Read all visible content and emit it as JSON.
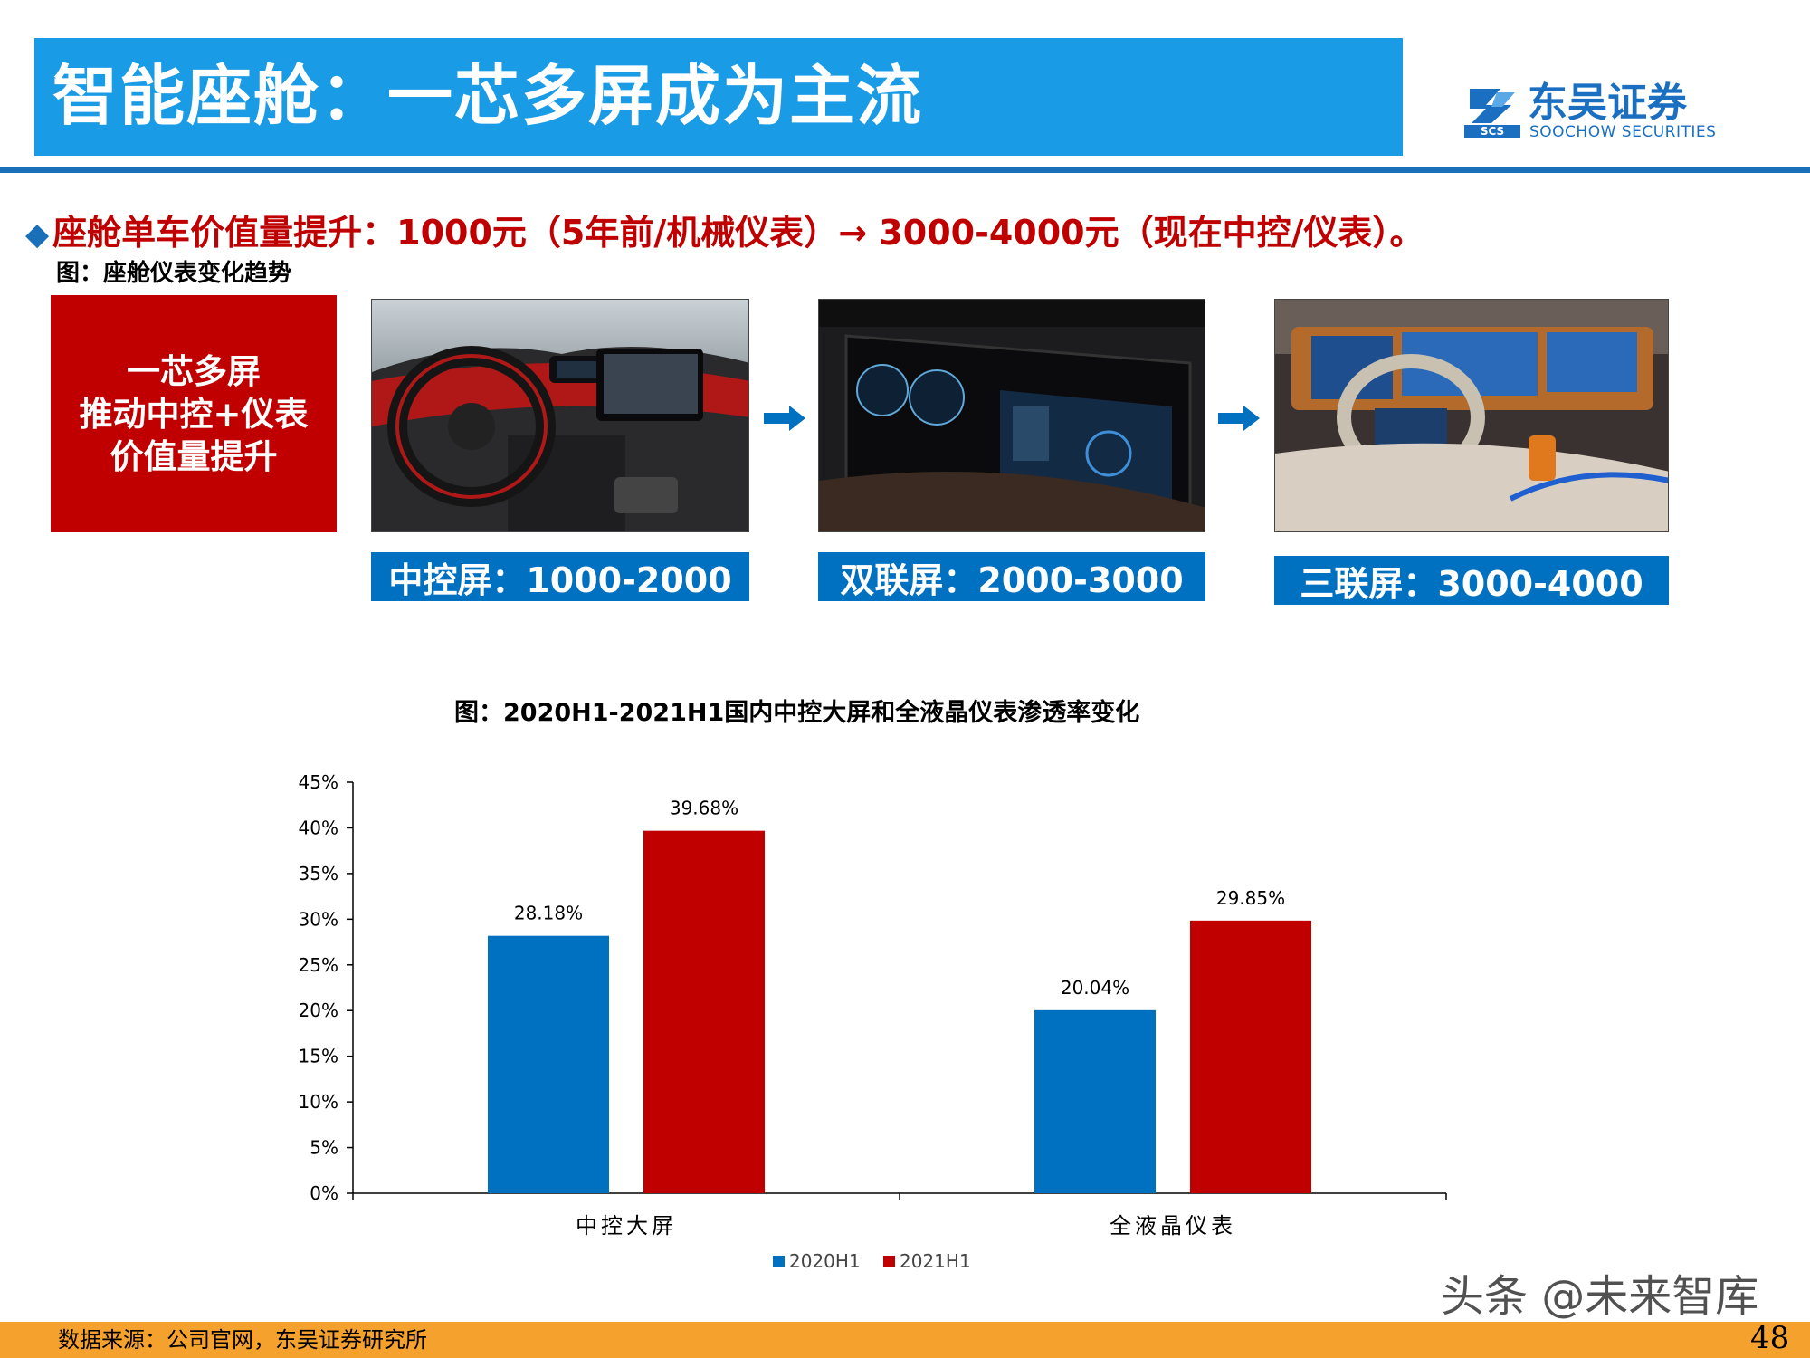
{
  "header": {
    "title": "智能座舱：一芯多屏成为主流",
    "logo_cn": "东吴证券",
    "logo_en": "SOOCHOW SECURITIES",
    "logo_mark_text": "SCS"
  },
  "bullet": {
    "marker": "◆",
    "text": "座舱单车价值量提升：1000元（5年前/机械仪表）→ 3000-4000元（现在中控/仪表）。"
  },
  "figure_top": {
    "caption": "图：座舱仪表变化趋势",
    "redbox_lines": [
      "一芯多屏",
      "推动中控+仪表",
      "价值量提升"
    ],
    "labels": [
      "中控屏：1000-2000",
      "双联屏：2000-3000",
      "三联屏：3000-4000"
    ]
  },
  "chart_title": "图：2020H1-2021H1国内中控大屏和全液晶仪表渗透率变化",
  "chart_data": {
    "type": "bar",
    "categories": [
      "中控大屏",
      "全液晶仪表"
    ],
    "series": [
      {
        "name": "2020H1",
        "values": [
          28.18,
          20.04
        ],
        "labels": [
          "28.18%",
          "20.04%"
        ],
        "color": "#0070c0"
      },
      {
        "name": "2021H1",
        "values": [
          39.68,
          29.85
        ],
        "labels": [
          "39.68%",
          "29.85%"
        ],
        "color": "#c00000"
      }
    ],
    "ylim": [
      0,
      45
    ],
    "yticks": [
      0,
      5,
      10,
      15,
      20,
      25,
      30,
      35,
      40,
      45
    ],
    "ytick_labels": [
      "0%",
      "5%",
      "10%",
      "15%",
      "20%",
      "25%",
      "30%",
      "35%",
      "40%",
      "45%"
    ],
    "grid": false,
    "legend_position": "bottom"
  },
  "footer": {
    "source": "数据来源：公司官网，东吴证券研究所",
    "page": "48",
    "watermark": "头条 @未来智库"
  },
  "colors": {
    "title_bar": "#1a9be6",
    "accent_red": "#c00000",
    "accent_blue": "#0070c0",
    "footer": "#f5a12e"
  }
}
